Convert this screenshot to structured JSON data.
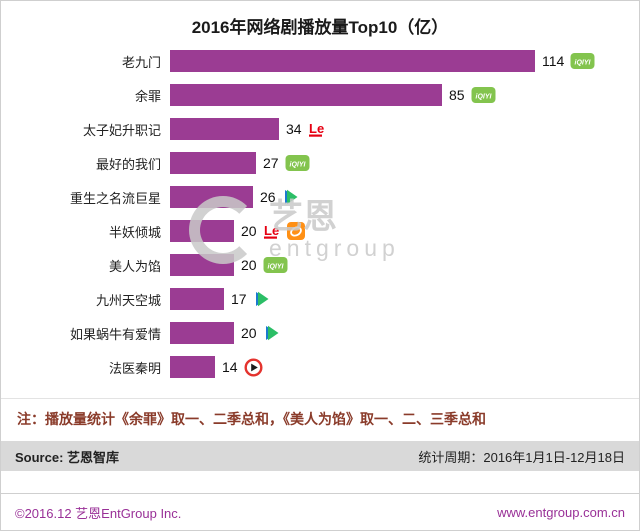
{
  "title": "2016年网络剧播放量Top10（亿）",
  "chart_data": {
    "type": "bar",
    "orientation": "horizontal",
    "title": "2016年网络剧播放量Top10（亿）",
    "unit": "亿",
    "categories": [
      "老九门",
      "余罪",
      "太子妃升职记",
      "最好的我们",
      "重生之名流巨星",
      "半妖倾城",
      "美人为馅",
      "九州天空城",
      "如果蜗牛有爱情",
      "法医秦明"
    ],
    "values": [
      114,
      85,
      34,
      27,
      26,
      20,
      20,
      17,
      20,
      14
    ],
    "platforms": [
      [
        "iqiyi"
      ],
      [
        "iqiyi"
      ],
      [
        "letv"
      ],
      [
        "iqiyi"
      ],
      [
        "tencent-video"
      ],
      [
        "letv",
        "mango-tv"
      ],
      [
        "iqiyi"
      ],
      [
        "tencent-video"
      ],
      [
        "tencent-video"
      ],
      [
        "sohu-video"
      ]
    ],
    "xlim": [
      0,
      120
    ],
    "grid": false,
    "value_labels": true,
    "bar_color": "#9B3C93"
  },
  "watermark": {
    "cn": "艺恩",
    "en": "entgroup"
  },
  "note": "注：播放量统计《余罪》取一、二季总和，《美人为馅》取一、二、三季总和",
  "source_bar": {
    "source": "Source: 艺恩智库",
    "period": "统计周期：2016年1月1日-12月18日"
  },
  "footer": {
    "copyright": "©2016.12 艺恩EntGroup Inc.",
    "website": "www.entgroup.com.cn"
  },
  "colors": {
    "bar": "#9B3C93",
    "accent_purple": "#993097",
    "note_text": "#8A3B2A",
    "source_bg": "#D9D9D9",
    "iqiyi_green": "#83C44E",
    "letv_red": "#E60012",
    "tencent_green": "#2BBE66",
    "tencent_blue": "#1B7ACF",
    "mango_orange": "#FF9015",
    "sohu_red": "#E4332E"
  }
}
